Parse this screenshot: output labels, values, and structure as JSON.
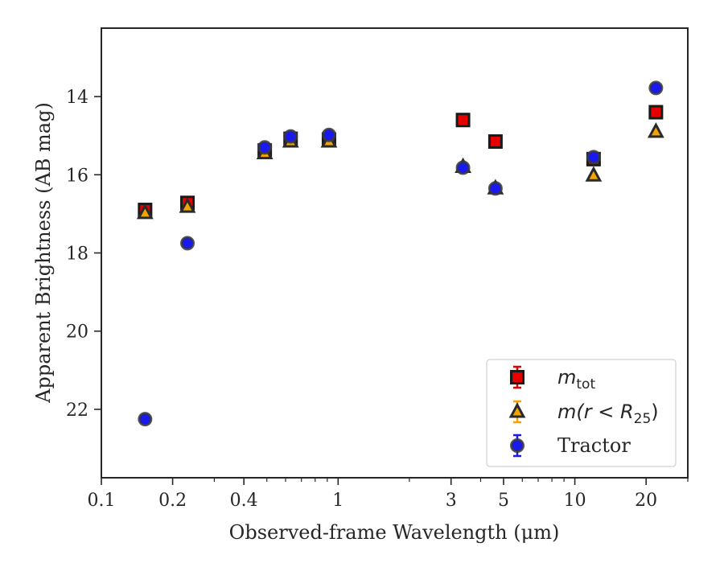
{
  "chart_data": {
    "type": "scatter",
    "xlabel": "Observed-frame Wavelength (μm)",
    "ylabel": "Apparent Brightness (AB mag)",
    "x_scale": "log",
    "xlim": [
      0.1,
      30
    ],
    "ylim": [
      23.75,
      12.25
    ],
    "y_inverted": true,
    "grid": false,
    "legend_position": "lower-right",
    "x_ticks": [
      {
        "value": 0.1,
        "label": "0.1"
      },
      {
        "value": 0.2,
        "label": "0.2"
      },
      {
        "value": 0.4,
        "label": "0.4"
      },
      {
        "value": 1,
        "label": "1"
      },
      {
        "value": 3,
        "label": "3"
      },
      {
        "value": 5,
        "label": "5"
      },
      {
        "value": 10,
        "label": "10"
      },
      {
        "value": 20,
        "label": "20"
      }
    ],
    "y_ticks": [
      14,
      16,
      18,
      20,
      22
    ],
    "series": [
      {
        "name": "m_tot",
        "legend_text": "m",
        "legend_sub": "tot",
        "marker": "square",
        "color": "#e60000",
        "points": [
          {
            "x": 0.153,
            "y": 16.9
          },
          {
            "x": 0.231,
            "y": 16.72
          },
          {
            "x": 0.49,
            "y": 15.38
          },
          {
            "x": 0.63,
            "y": 15.08
          },
          {
            "x": 0.915,
            "y": 15.1
          },
          {
            "x": 3.37,
            "y": 14.6
          },
          {
            "x": 4.62,
            "y": 15.15
          },
          {
            "x": 12.0,
            "y": 15.6
          },
          {
            "x": 22.0,
            "y": 14.4
          }
        ]
      },
      {
        "name": "m(r < R_25)",
        "legend_text": "m(r < R",
        "legend_sub": "25",
        "legend_tail": ")",
        "marker": "triangle",
        "color": "#f2a400",
        "points": [
          {
            "x": 0.153,
            "y": 16.98
          },
          {
            "x": 0.231,
            "y": 16.82
          },
          {
            "x": 0.49,
            "y": 15.45
          },
          {
            "x": 0.63,
            "y": 15.15
          },
          {
            "x": 0.915,
            "y": 15.15
          },
          {
            "x": 3.37,
            "y": 15.8
          },
          {
            "x": 4.62,
            "y": 16.35
          },
          {
            "x": 12.0,
            "y": 16.02
          },
          {
            "x": 22.0,
            "y": 14.9
          }
        ]
      },
      {
        "name": "Tractor",
        "legend_text": "Tractor",
        "marker": "circle",
        "color": "#1a1aee",
        "points": [
          {
            "x": 0.153,
            "y": 22.25
          },
          {
            "x": 0.231,
            "y": 17.75
          },
          {
            "x": 0.49,
            "y": 15.3
          },
          {
            "x": 0.63,
            "y": 15.02
          },
          {
            "x": 0.915,
            "y": 14.98
          },
          {
            "x": 3.37,
            "y": 15.82
          },
          {
            "x": 4.62,
            "y": 16.35
          },
          {
            "x": 12.0,
            "y": 15.55
          },
          {
            "x": 22.0,
            "y": 13.78
          }
        ]
      }
    ]
  }
}
